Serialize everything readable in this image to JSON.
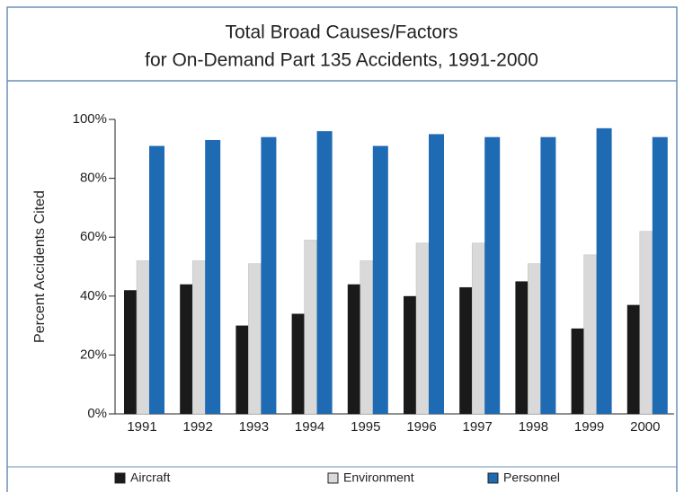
{
  "chart_data": {
    "type": "bar",
    "title": "Total Broad Causes/Factors",
    "subtitle": "for On-Demand Part 135 Accidents, 1991-2000",
    "y_label": "Percent Accidents Cited",
    "categories": [
      "1991",
      "1992",
      "1993",
      "1994",
      "1995",
      "1996",
      "1997",
      "1998",
      "1999",
      "2000"
    ],
    "series": [
      {
        "name": "Aircraft",
        "color": "#1a1a1a",
        "values": [
          42,
          44,
          30,
          34,
          44,
          40,
          43,
          45,
          29,
          37
        ]
      },
      {
        "name": "Environment",
        "color": "#d9d9d9",
        "values": [
          52,
          52,
          51,
          59,
          52,
          58,
          58,
          51,
          54,
          62
        ]
      },
      {
        "name": "Personnel",
        "color": "#1f6bb3",
        "values": [
          91,
          93,
          94,
          96,
          91,
          95,
          94,
          94,
          97,
          94
        ]
      }
    ],
    "ylim": [
      0,
      100
    ],
    "yticks": [
      {
        "value": 0,
        "label": "0%"
      },
      {
        "value": 20,
        "label": "20%"
      },
      {
        "value": 40,
        "label": "40%"
      },
      {
        "value": 60,
        "label": "60%"
      },
      {
        "value": 80,
        "label": "80%"
      },
      {
        "value": 100,
        "label": "100%"
      }
    ],
    "legend": "bottom"
  }
}
